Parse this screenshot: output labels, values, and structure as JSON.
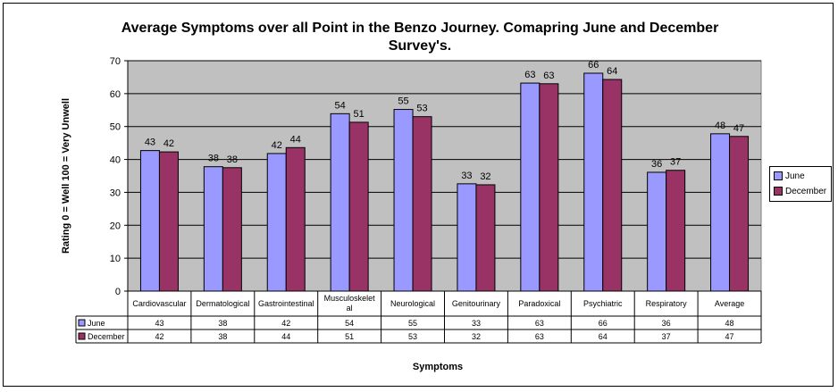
{
  "chart_data": {
    "type": "bar",
    "title": "Average Symptoms over all Point in the Benzo Journey. Comapring June and December Survey's.",
    "xlabel": "Symptoms",
    "ylabel": "Rating 0 = Well 100 = Very Unwell",
    "ylim": [
      0,
      70
    ],
    "yticks": [
      0,
      10,
      20,
      30,
      40,
      50,
      60,
      70
    ],
    "grid": true,
    "legend_position": "right",
    "categories": [
      "Cardiovascular",
      "Dermatological",
      "Gastrointestinal",
      "Musculoskeletal",
      "Neurological",
      "Genitourinary",
      "Paradoxical",
      "Psychiatric",
      "Respiratory",
      "Average"
    ],
    "category_display": [
      [
        "Cardiovascular"
      ],
      [
        "Dermatological"
      ],
      [
        "Gastrointestinal"
      ],
      [
        "Musculoskelet",
        "al"
      ],
      [
        "Neurological"
      ],
      [
        "Genitourinary"
      ],
      [
        "Paradoxical"
      ],
      [
        "Psychiatric"
      ],
      [
        "Respiratory"
      ],
      [
        "Average"
      ]
    ],
    "series": [
      {
        "name": "June",
        "color": "#9999ff",
        "values": [
          42.7,
          37.8,
          41.8,
          53.9,
          55.2,
          32.6,
          63.2,
          66.2,
          36.1,
          47.8
        ],
        "labels": [
          "43",
          "38",
          "42",
          "54",
          "55",
          "33",
          "63",
          "66",
          "36",
          "48"
        ]
      },
      {
        "name": "December",
        "color": "#993366",
        "values": [
          42.3,
          37.5,
          43.6,
          51.3,
          53.0,
          32.3,
          63.0,
          64.3,
          36.7,
          47.0
        ],
        "labels": [
          "42",
          "38",
          "44",
          "51",
          "53",
          "32",
          "63",
          "64",
          "37",
          "47"
        ]
      }
    ],
    "plot_background": "#c0c0c0"
  }
}
